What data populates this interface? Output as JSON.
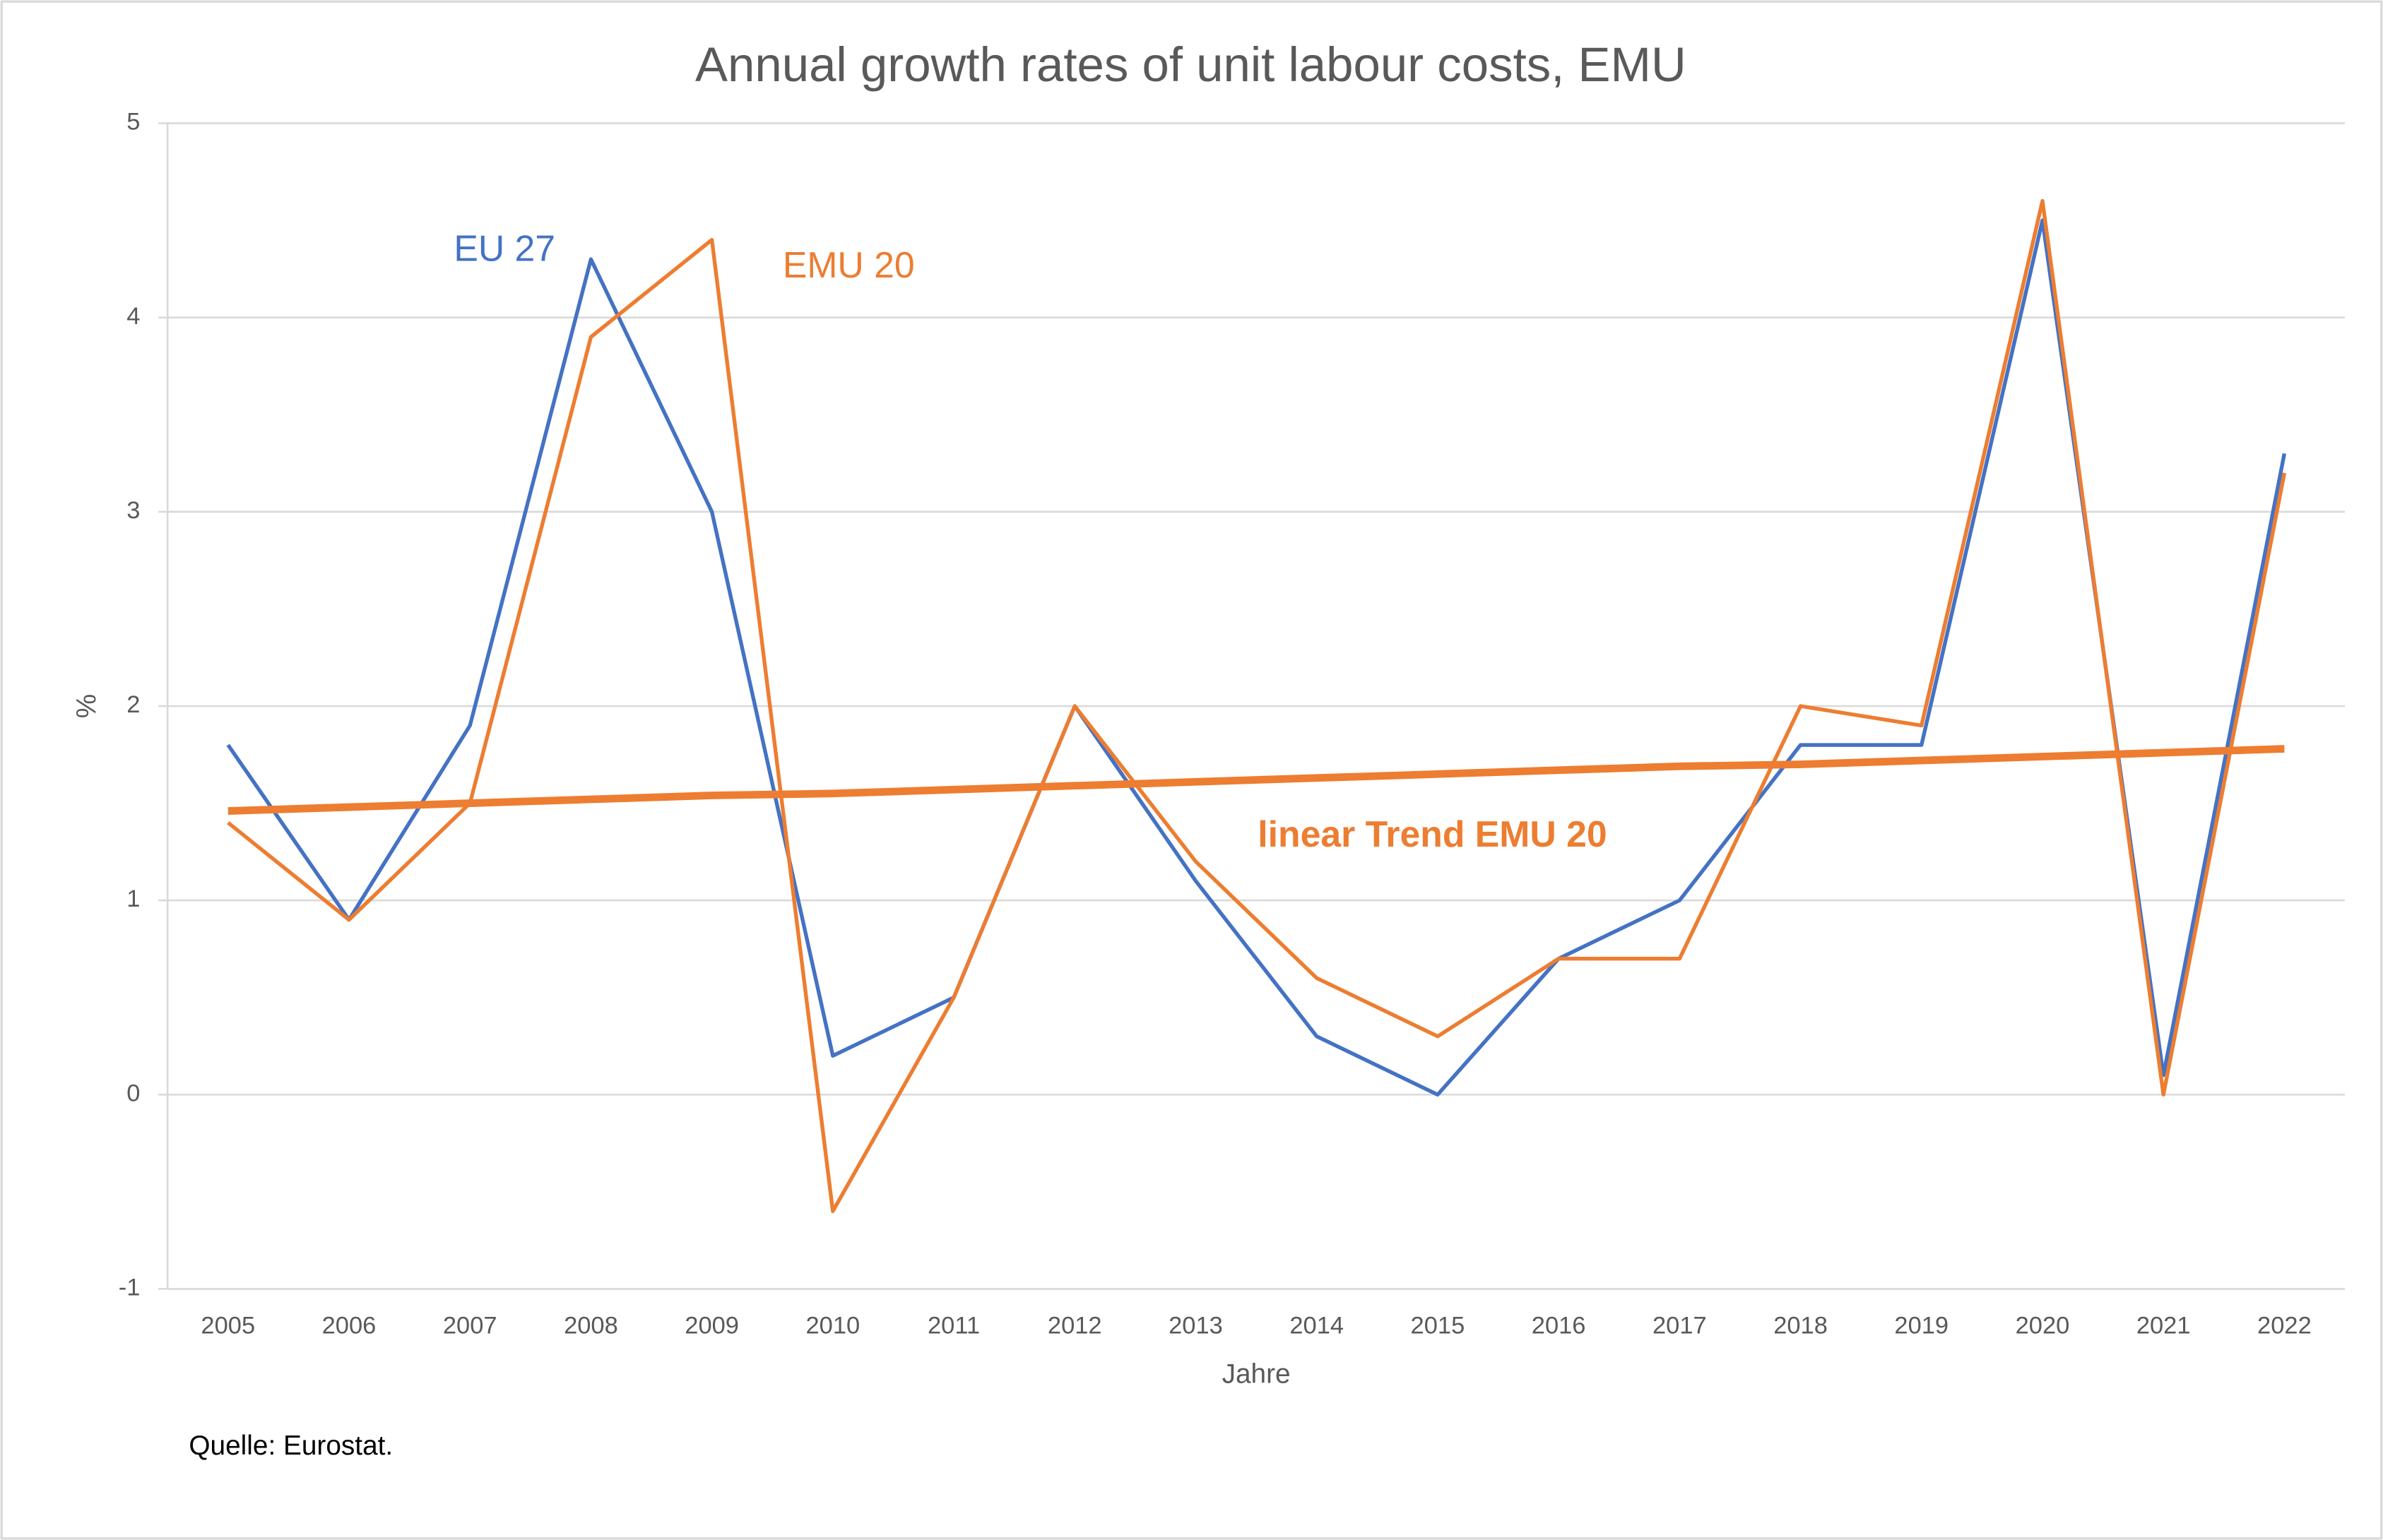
{
  "chart_data": {
    "type": "line",
    "title": "Annual growth rates of unit labour costs, EMU",
    "x_label": "Jahre",
    "y_label": "%",
    "source": "Quelle: Eurostat.",
    "categories": [
      "2005",
      "2006",
      "2007",
      "2008",
      "2009",
      "2010",
      "2011",
      "2012",
      "2013",
      "2014",
      "2015",
      "2016",
      "2017",
      "2018",
      "2019",
      "2020",
      "2021",
      "2022"
    ],
    "series": [
      {
        "name": "EU 27",
        "color": "#4472c4",
        "width": 2.5,
        "values": [
          1.8,
          0.9,
          1.9,
          4.3,
          3.0,
          0.2,
          0.5,
          2.0,
          1.1,
          0.3,
          0.0,
          0.7,
          1.0,
          1.8,
          1.8,
          4.5,
          0.1,
          3.3
        ]
      },
      {
        "name": "EMU 20",
        "color": "#ed7d31",
        "width": 2.5,
        "values": [
          1.4,
          0.9,
          1.5,
          3.9,
          4.4,
          -0.6,
          0.5,
          2.0,
          1.2,
          0.6,
          0.3,
          0.7,
          0.7,
          2.0,
          1.9,
          4.6,
          0.0,
          3.2
        ]
      },
      {
        "name": "linear Trend EMU 20",
        "color": "#ed7d31",
        "width": 5,
        "values": [
          1.46,
          1.48,
          1.5,
          1.52,
          1.54,
          1.55,
          1.57,
          1.59,
          1.61,
          1.63,
          1.65,
          1.67,
          1.69,
          1.7,
          1.72,
          1.74,
          1.76,
          1.78
        ]
      }
    ],
    "ylim": [
      -1,
      5
    ],
    "yticks": [
      -1,
      0,
      1,
      2,
      3,
      4,
      5
    ],
    "grid": true
  }
}
